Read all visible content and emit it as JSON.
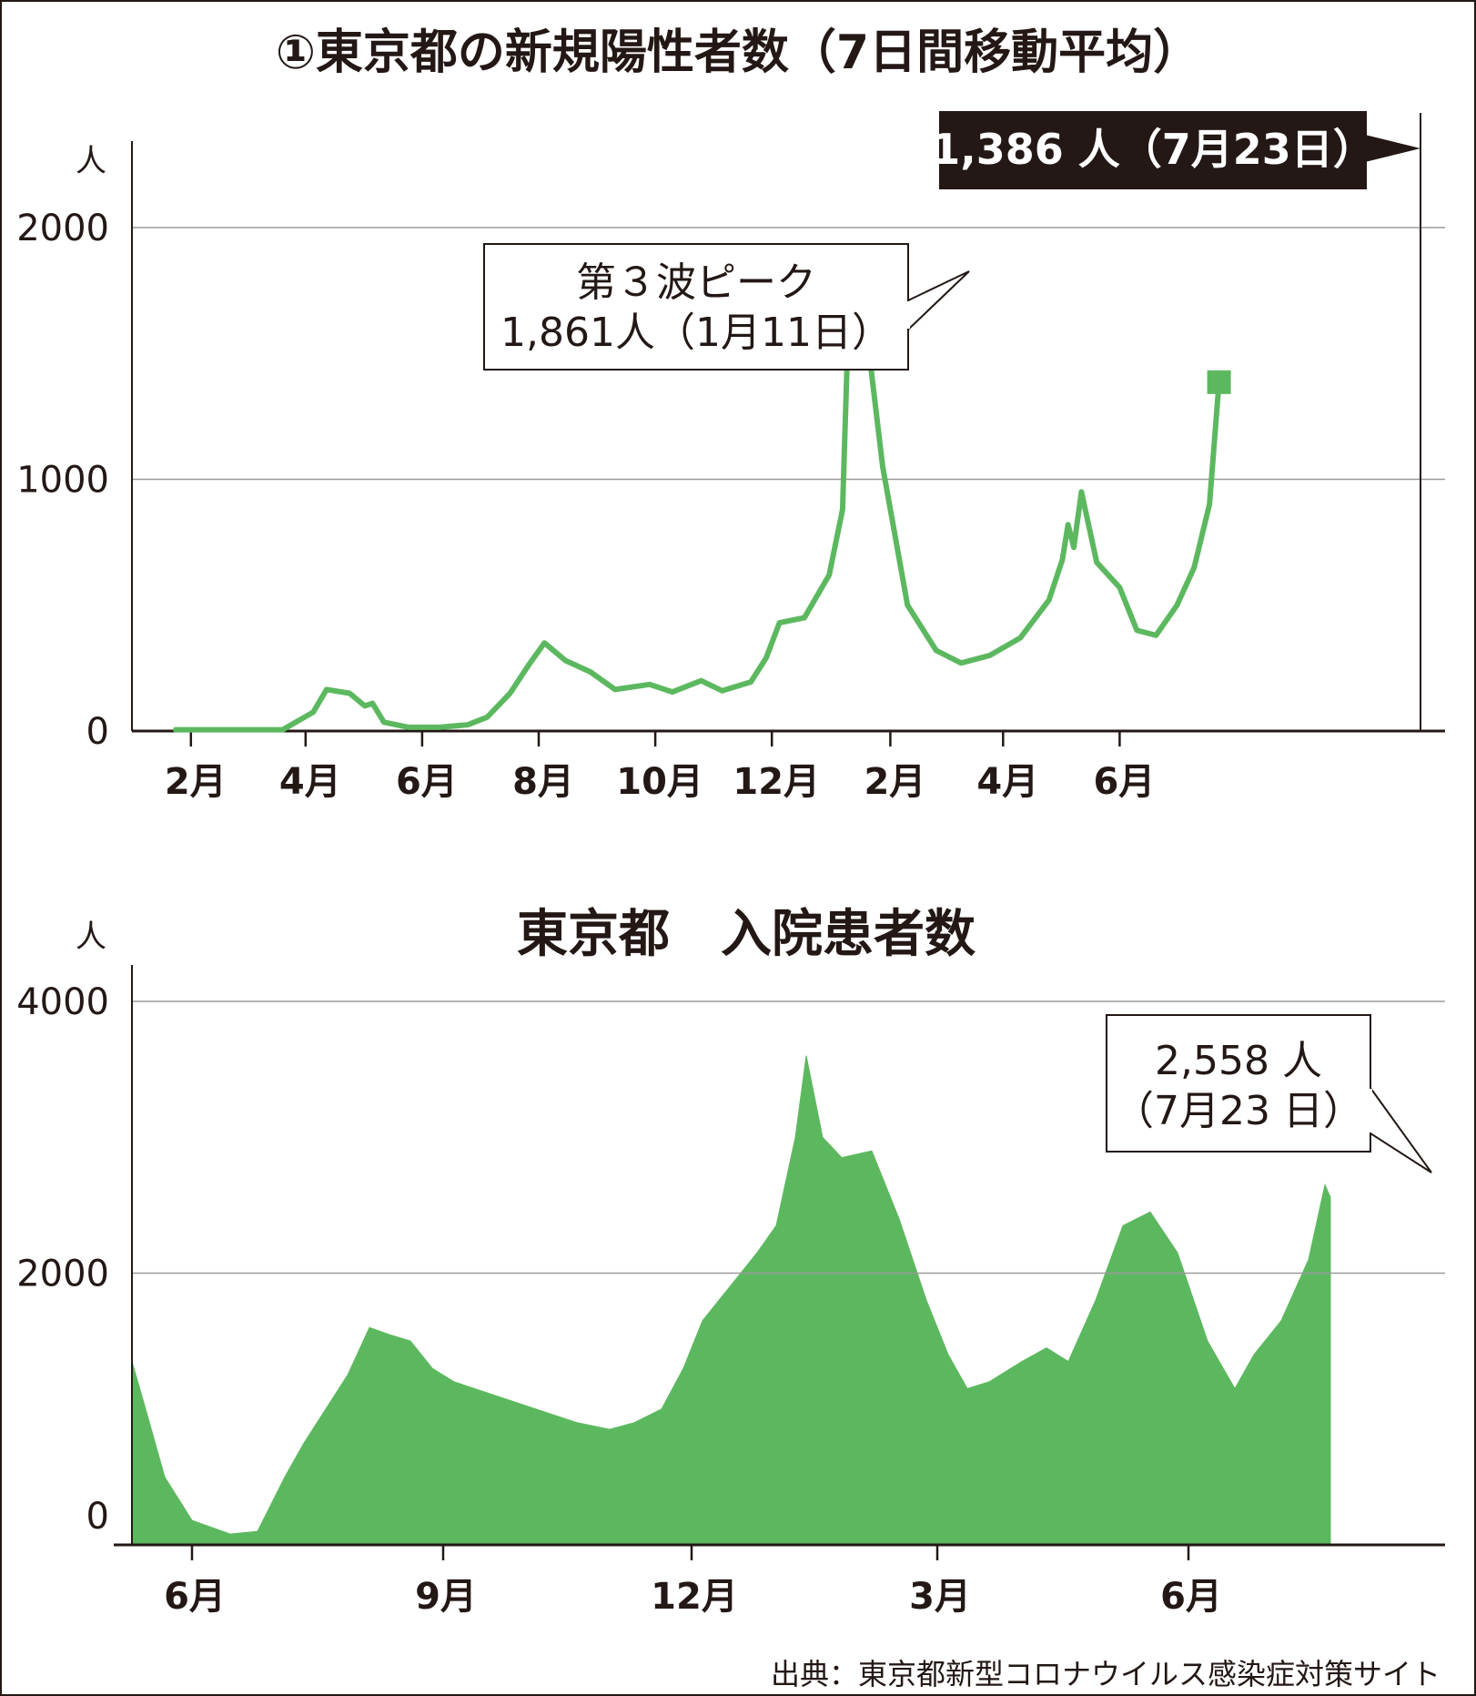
{
  "colors": {
    "series": "#5cb85f",
    "ink": "#231815",
    "grid": "#9a9a9a"
  },
  "source": "出典：東京都新型コロナウイルス感染症対策サイト",
  "chart_data": [
    {
      "type": "line",
      "title": "①東京都の新規陽性者数（7日間移動平均）",
      "ylabel": "人",
      "ylim": [
        0,
        2000
      ],
      "yticks": [
        "0",
        "1000",
        "2000"
      ],
      "xticks": [
        "2月",
        "4月",
        "6月",
        "8月",
        "10月",
        "12月",
        "2月",
        "4月",
        "6月"
      ],
      "x_start": "2020-01-24",
      "x": [
        "2020-01-24",
        "2020-03-20",
        "2020-04-05",
        "2020-04-12",
        "2020-04-24",
        "2020-05-02",
        "2020-05-06",
        "2020-05-12",
        "2020-05-25",
        "2020-06-10",
        "2020-06-25",
        "2020-07-05",
        "2020-07-17",
        "2020-07-27",
        "2020-08-04",
        "2020-08-15",
        "2020-08-28",
        "2020-09-10",
        "2020-09-28",
        "2020-10-10",
        "2020-10-25",
        "2020-11-05",
        "2020-11-20",
        "2020-11-28",
        "2020-12-05",
        "2020-12-18",
        "2020-12-31",
        "2021-01-07",
        "2021-01-11",
        "2021-01-15",
        "2021-01-20",
        "2021-01-28",
        "2021-02-10",
        "2021-02-25",
        "2021-03-10",
        "2021-03-25",
        "2021-04-10",
        "2021-04-25",
        "2021-05-02",
        "2021-05-05",
        "2021-05-08",
        "2021-05-12",
        "2021-05-20",
        "2021-06-01",
        "2021-06-10",
        "2021-06-20",
        "2021-07-01",
        "2021-07-10",
        "2021-07-18",
        "2021-07-23"
      ],
      "y": [
        5,
        5,
        75,
        165,
        150,
        100,
        110,
        35,
        15,
        15,
        25,
        55,
        150,
        265,
        350,
        280,
        235,
        165,
        185,
        155,
        200,
        160,
        195,
        290,
        430,
        450,
        620,
        880,
        1861,
        1700,
        1560,
        1050,
        500,
        320,
        270,
        300,
        370,
        520,
        680,
        820,
        730,
        950,
        670,
        570,
        400,
        380,
        500,
        650,
        900,
        1386
      ],
      "annotations": [
        {
          "text_line1": "第３波ピーク",
          "text_line2": "1,861人（1月11日）",
          "x": "2021-01-11",
          "y": 1861
        },
        {
          "text": "1,386 人（7月23日）",
          "x": "2021-07-23",
          "y": 1386
        }
      ]
    },
    {
      "type": "area",
      "title": "東京都　入院患者数",
      "ylabel": "人",
      "ylim": [
        0,
        4000
      ],
      "yticks": [
        "0",
        "2000",
        "4000"
      ],
      "xticks": [
        "6月",
        "9月",
        "12月",
        "3月",
        "6月"
      ],
      "x_start": "2020-05-10",
      "x": [
        "2020-05-10",
        "2020-05-15",
        "2020-05-22",
        "2020-06-01",
        "2020-06-15",
        "2020-06-25",
        "2020-07-05",
        "2020-07-12",
        "2020-07-20",
        "2020-07-28",
        "2020-08-05",
        "2020-08-12",
        "2020-08-20",
        "2020-08-28",
        "2020-09-05",
        "2020-09-20",
        "2020-10-05",
        "2020-10-20",
        "2020-11-01",
        "2020-11-10",
        "2020-11-20",
        "2020-11-28",
        "2020-12-05",
        "2020-12-15",
        "2020-12-25",
        "2021-01-01",
        "2021-01-08",
        "2021-01-12",
        "2021-01-18",
        "2021-01-25",
        "2021-02-05",
        "2021-02-15",
        "2021-02-25",
        "2021-03-05",
        "2021-03-12",
        "2021-03-20",
        "2021-04-01",
        "2021-04-10",
        "2021-04-18",
        "2021-04-28",
        "2021-05-08",
        "2021-05-18",
        "2021-05-28",
        "2021-06-08",
        "2021-06-18",
        "2021-06-25",
        "2021-07-05",
        "2021-07-15",
        "2021-07-21",
        "2021-07-23"
      ],
      "y": [
        1350,
        1000,
        500,
        180,
        80,
        100,
        500,
        750,
        1000,
        1250,
        1600,
        1550,
        1500,
        1300,
        1200,
        1100,
        1000,
        900,
        850,
        900,
        1000,
        1300,
        1650,
        1900,
        2150,
        2350,
        3000,
        3600,
        3000,
        2850,
        2900,
        2400,
        1800,
        1400,
        1150,
        1200,
        1350,
        1450,
        1350,
        1800,
        2350,
        2450,
        2150,
        1500,
        1150,
        1400,
        1650,
        2100,
        2650,
        2558
      ],
      "annotations": [
        {
          "text_line1": "2,558 人",
          "text_line2": "（7月23 日）",
          "x": "2021-07-23",
          "y": 2558
        }
      ]
    }
  ]
}
